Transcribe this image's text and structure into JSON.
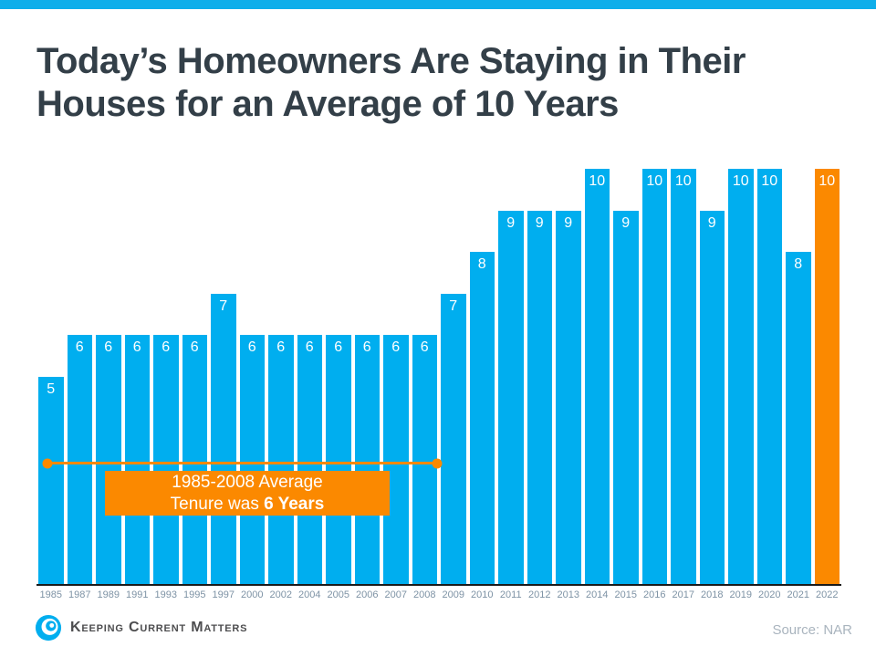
{
  "title": "Today’s Homeowners Are Staying in Their Houses for an Average of 10 Years",
  "colors": {
    "top_bar": "#0FAEEA",
    "bar_blue": "#00AEEF",
    "highlight_orange": "#FB8900",
    "title_text": "#333F48",
    "axis_label": "#7E93A5"
  },
  "chart_data": {
    "type": "bar",
    "categories": [
      "1985",
      "1987",
      "1989",
      "1991",
      "1993",
      "1995",
      "1997",
      "2000",
      "2002",
      "2004",
      "2005",
      "2006",
      "2007",
      "2008",
      "2009",
      "2010",
      "2011",
      "2012",
      "2013",
      "2014",
      "2015",
      "2016",
      "2017",
      "2018",
      "2019",
      "2020",
      "2021",
      "2022"
    ],
    "values": [
      5,
      6,
      6,
      6,
      6,
      6,
      7,
      6,
      6,
      6,
      6,
      6,
      6,
      6,
      7,
      8,
      9,
      9,
      9,
      10,
      9,
      10,
      10,
      9,
      10,
      10,
      8,
      10
    ],
    "title": "Today’s Homeowners Are Staying in Their Houses for an Average of 10 Years",
    "xlabel": "",
    "ylabel": "",
    "ylim": [
      0,
      10
    ],
    "grid": false,
    "legend": false,
    "bar_color": "#00AEEF",
    "highlight_color": "#FB8900",
    "highlight_index": 27,
    "annotation": {
      "line_span": "1985 to 2008",
      "text_line1": "1985-2008 Average",
      "text_line2_regular": "Tenure was ",
      "text_line2_bold": "6 Years"
    }
  },
  "footer": {
    "logo_text": "Keeping Current Matters",
    "source": "Source: NAR"
  }
}
